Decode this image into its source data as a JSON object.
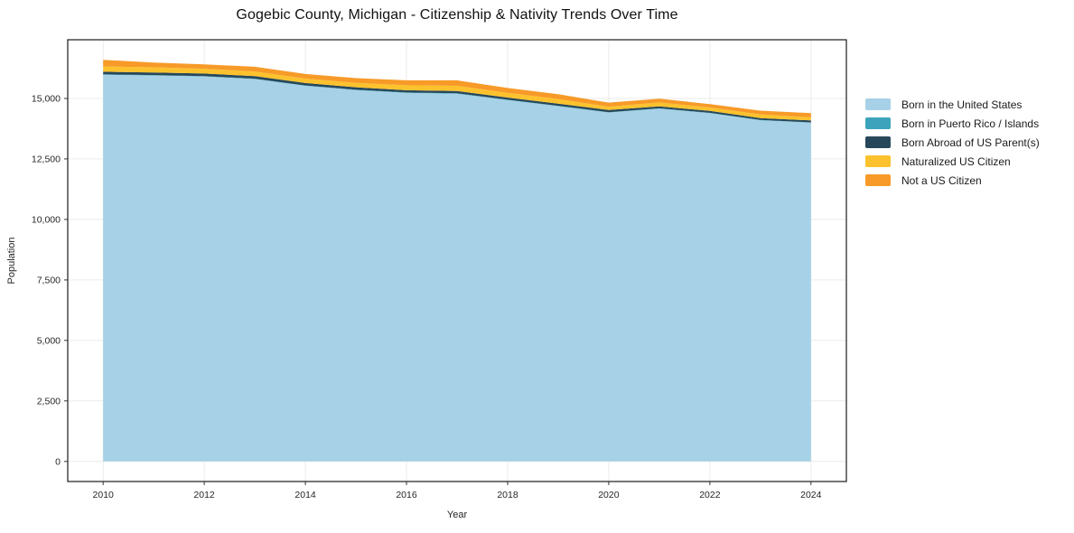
{
  "title": "Gogebic County, Michigan - Citizenship & Nativity Trends Over Time",
  "chart_data": {
    "type": "area",
    "stacked": true,
    "title": "Gogebic County, Michigan - Citizenship & Nativity Trends Over Time",
    "xlabel": "Year",
    "ylabel": "Population",
    "x": [
      2010,
      2011,
      2012,
      2013,
      2014,
      2015,
      2016,
      2017,
      2018,
      2019,
      2020,
      2021,
      2022,
      2023,
      2024
    ],
    "series": [
      {
        "name": "Born in the United States",
        "color": "#a6d1e6",
        "values": [
          15980,
          15950,
          15910,
          15800,
          15520,
          15345,
          15230,
          15195,
          14930,
          14680,
          14420,
          14580,
          14395,
          14100,
          14000
        ]
      },
      {
        "name": "Born in Puerto Rico / Islands",
        "color": "#3da3bc",
        "values": [
          15,
          15,
          15,
          15,
          15,
          15,
          15,
          15,
          15,
          15,
          10,
          10,
          10,
          10,
          10
        ]
      },
      {
        "name": "Born Abroad of US Parent(s)",
        "color": "#27485a",
        "values": [
          110,
          110,
          105,
          105,
          100,
          100,
          95,
          95,
          90,
          90,
          90,
          85,
          80,
          80,
          80
        ]
      },
      {
        "name": "Naturalized US Citizen",
        "color": "#fcc22d",
        "values": [
          220,
          210,
          195,
          195,
          185,
          180,
          205,
          215,
          195,
          190,
          140,
          160,
          140,
          150,
          130
        ]
      },
      {
        "name": "Not a US Citizen",
        "color": "#f79a28",
        "values": [
          270,
          195,
          185,
          195,
          190,
          200,
          205,
          230,
          200,
          200,
          165,
          155,
          140,
          155,
          175
        ]
      }
    ],
    "totals": [
      16595,
      16480,
      16410,
      16310,
      16010,
      15840,
      15750,
      15750,
      15430,
      15175,
      14825,
      14990,
      14765,
      14495,
      14395
    ],
    "xlim": [
      2009.3,
      2024.7
    ],
    "ylim": [
      -830,
      17425
    ],
    "xticks": [
      2010,
      2012,
      2014,
      2016,
      2018,
      2020,
      2022,
      2024
    ],
    "xtick_labels": [
      "2010",
      "2012",
      "2014",
      "2016",
      "2018",
      "2020",
      "2022",
      "2024"
    ],
    "yticks": [
      0,
      2500,
      5000,
      7500,
      10000,
      12500,
      15000
    ],
    "ytick_labels": [
      "0",
      "2,500",
      "5,000",
      "7,500",
      "10,000",
      "12,500",
      "15,000"
    ],
    "grid": true,
    "legend_position": "right of plot, upper"
  },
  "style": {
    "background": "#ffffff",
    "grid_color": "#ebebeb",
    "spine_color": "#1a1a1a",
    "tick_color": "#333333",
    "tick_label_color": "#262626",
    "title_color": "#111111"
  }
}
